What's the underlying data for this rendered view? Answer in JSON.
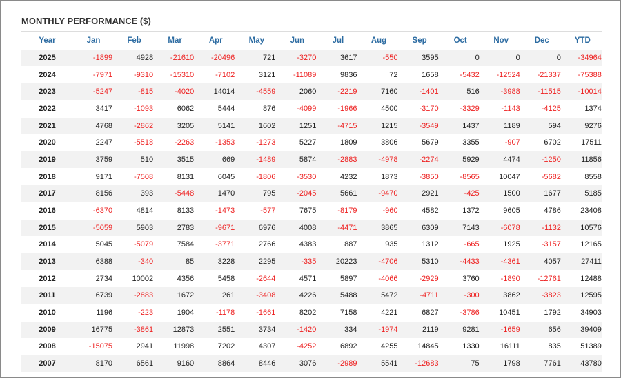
{
  "header": {
    "title": "MONTHLY PERFORMANCE ($)"
  },
  "table": {
    "columns": [
      "Year",
      "Jan",
      "Feb",
      "Mar",
      "Apr",
      "May",
      "Jun",
      "Jul",
      "Aug",
      "Sep",
      "Oct",
      "Nov",
      "Dec",
      "YTD"
    ],
    "rows": [
      [
        2025,
        -1899,
        4928,
        -21610,
        -20496,
        721,
        -3270,
        3617,
        -550,
        3595,
        0,
        0,
        0,
        -34964
      ],
      [
        2024,
        -7971,
        -9310,
        -15310,
        -7102,
        3121,
        -11089,
        9836,
        72,
        1658,
        -5432,
        -12524,
        -21337,
        -75388
      ],
      [
        2023,
        -5247,
        -815,
        -4020,
        14014,
        -4559,
        2060,
        -2219,
        7160,
        -1401,
        516,
        -3988,
        -11515,
        -10014
      ],
      [
        2022,
        3417,
        -1093,
        6062,
        5444,
        876,
        -4099,
        -1966,
        4500,
        -3170,
        -3329,
        -1143,
        -4125,
        1374
      ],
      [
        2021,
        4768,
        -2862,
        3205,
        5141,
        1602,
        1251,
        -4715,
        1215,
        -3549,
        1437,
        1189,
        594,
        9276
      ],
      [
        2020,
        2247,
        -5518,
        -2263,
        -1353,
        -1273,
        5227,
        1809,
        3806,
        5679,
        3355,
        -907,
        6702,
        17511
      ],
      [
        2019,
        3759,
        510,
        3515,
        669,
        -1489,
        5874,
        -2883,
        -4978,
        -2274,
        5929,
        4474,
        -1250,
        11856
      ],
      [
        2018,
        9171,
        -7508,
        8131,
        6045,
        -1806,
        -3530,
        4232,
        1873,
        -3850,
        -8565,
        10047,
        -5682,
        8558
      ],
      [
        2017,
        8156,
        393,
        -5448,
        1470,
        795,
        -2045,
        5661,
        -9470,
        2921,
        -425,
        1500,
        1677,
        5185
      ],
      [
        2016,
        -6370,
        4814,
        8133,
        -1473,
        -577,
        7675,
        -8179,
        -960,
        4582,
        1372,
        9605,
        4786,
        23408
      ],
      [
        2015,
        -5059,
        5903,
        2783,
        -9671,
        6976,
        4008,
        -4471,
        3865,
        6309,
        7143,
        -6078,
        -1132,
        10576
      ],
      [
        2014,
        5045,
        -5079,
        7584,
        -3771,
        2766,
        4383,
        887,
        935,
        1312,
        -665,
        1925,
        -3157,
        12165
      ],
      [
        2013,
        6388,
        -340,
        85,
        3228,
        2295,
        -335,
        20223,
        -4706,
        5310,
        -4433,
        -4361,
        4057,
        27411
      ],
      [
        2012,
        2734,
        10002,
        4356,
        5458,
        -2644,
        4571,
        5897,
        -4066,
        -2929,
        3760,
        -1890,
        -12761,
        12488
      ],
      [
        2011,
        6739,
        -2883,
        1672,
        261,
        -3408,
        4226,
        5488,
        5472,
        -4711,
        -300,
        3862,
        -3823,
        12595
      ],
      [
        2010,
        1196,
        -223,
        1904,
        -1178,
        -1661,
        8202,
        7158,
        4221,
        6827,
        -3786,
        10451,
        1792,
        34903
      ],
      [
        2009,
        16775,
        -3861,
        12873,
        2551,
        3734,
        -1420,
        334,
        -1974,
        2119,
        9281,
        -1659,
        656,
        39409
      ],
      [
        2008,
        -15075,
        2941,
        11998,
        7202,
        4307,
        -4252,
        6892,
        4255,
        14845,
        1330,
        16111,
        835,
        51389
      ],
      [
        2007,
        8170,
        6561,
        9160,
        8864,
        8446,
        3076,
        -2989,
        5541,
        -12683,
        75,
        1798,
        7761,
        43780
      ]
    ]
  }
}
